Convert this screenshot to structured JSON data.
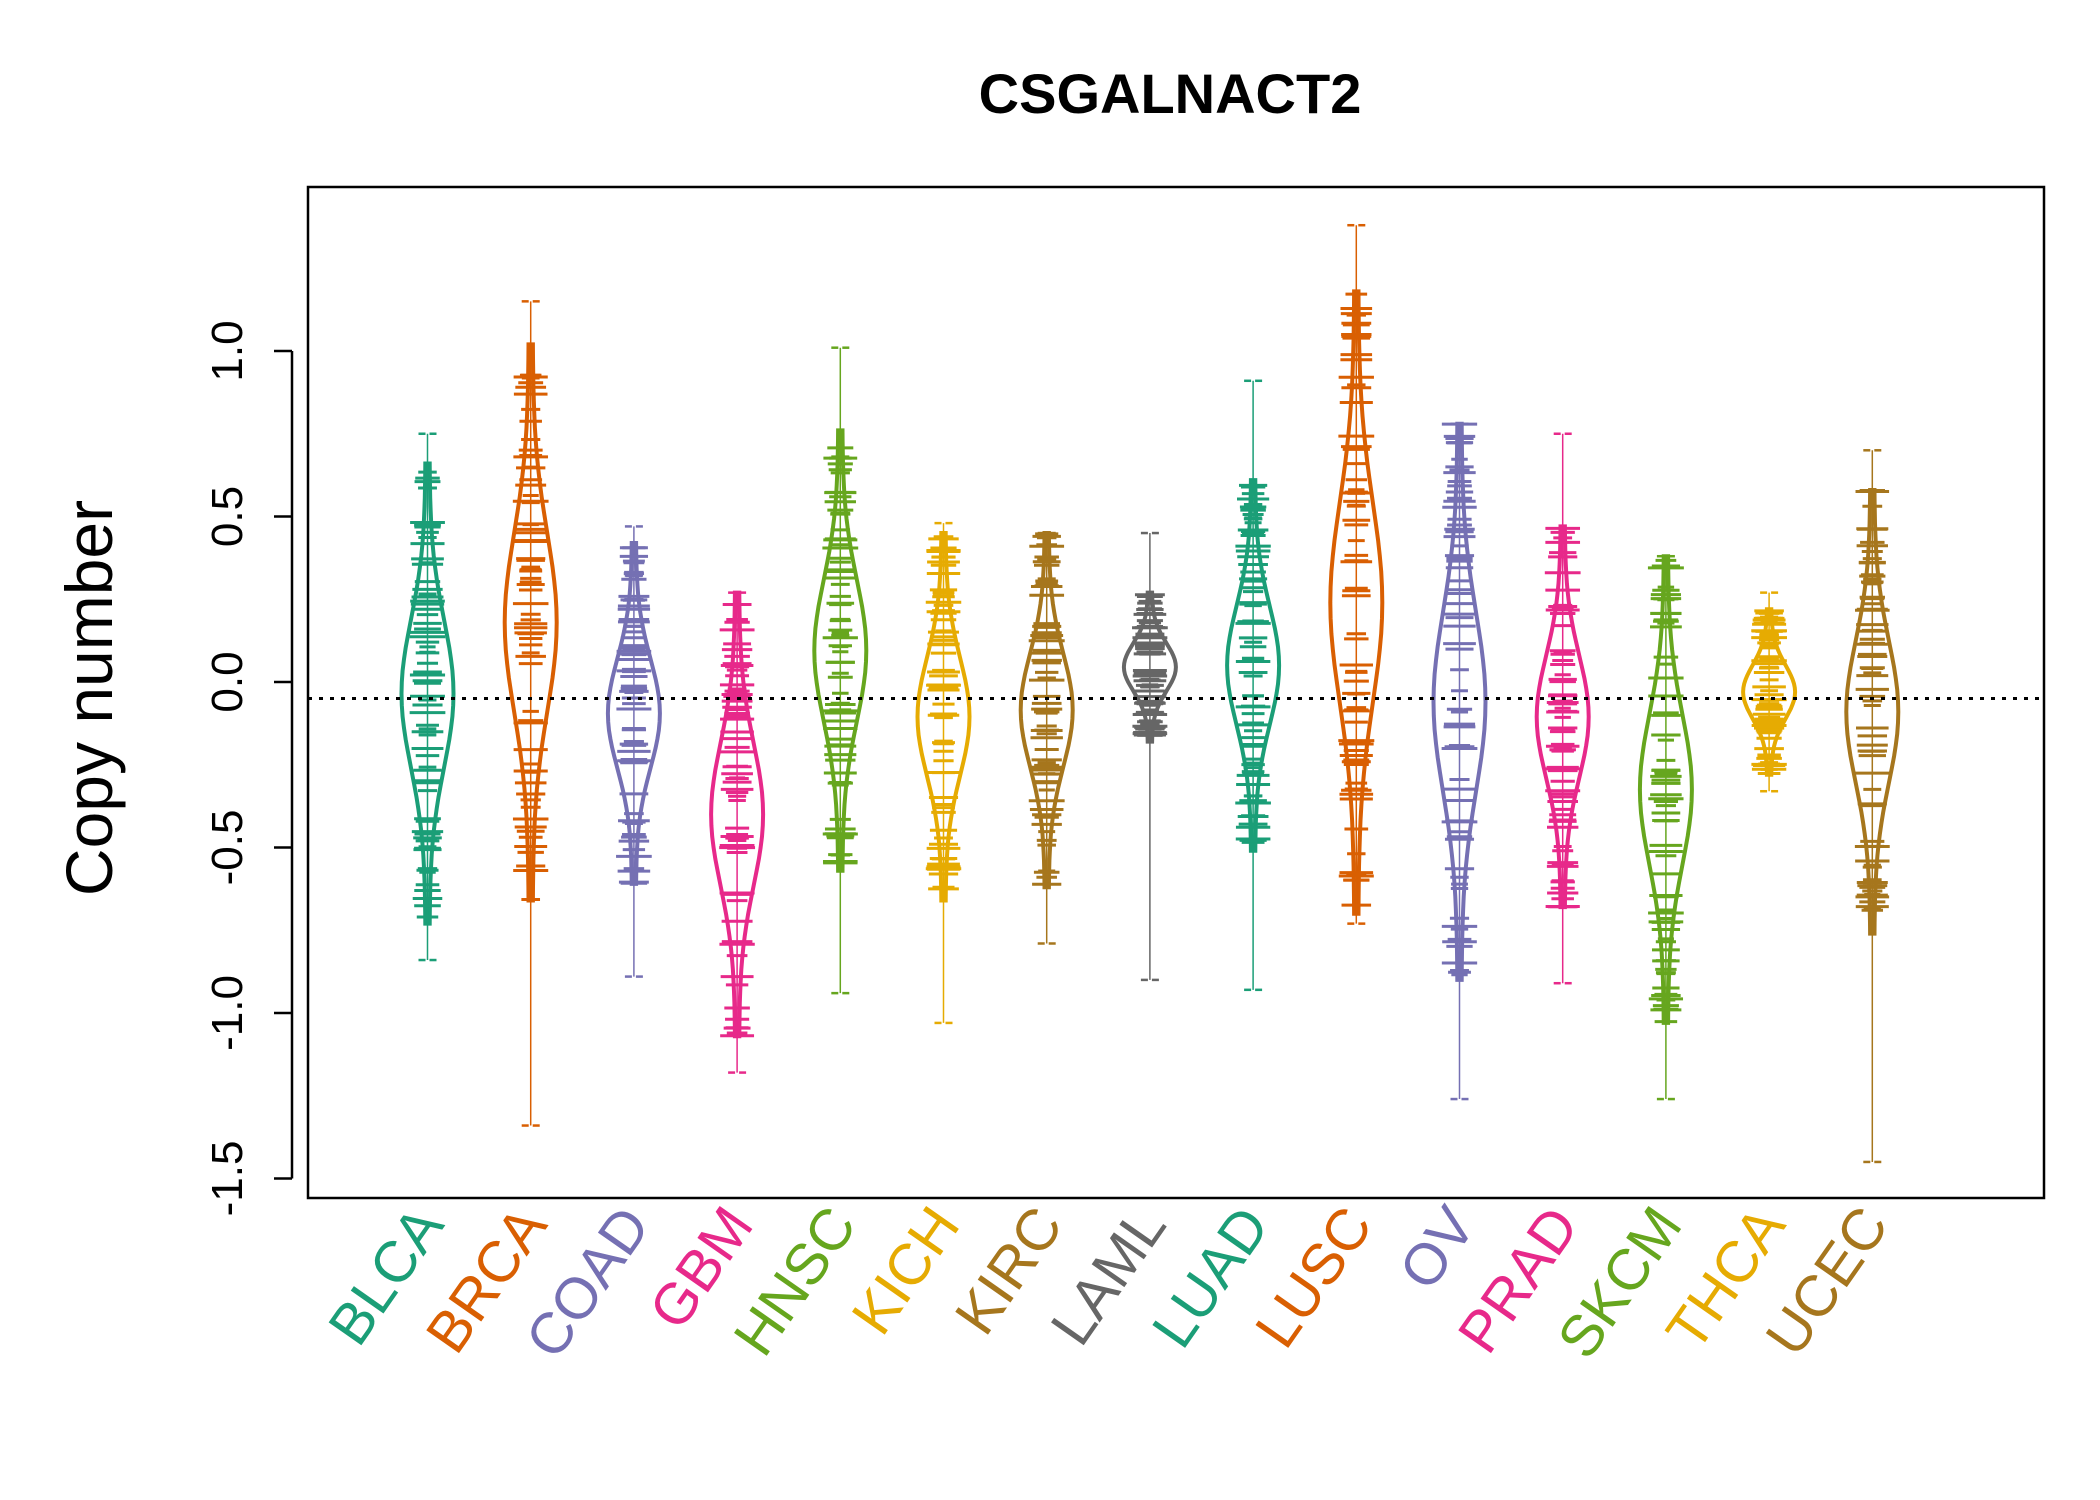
{
  "chart_data": {
    "type": "beanplot",
    "title": "CSGALNACT2",
    "xlabel": "",
    "ylabel": "Copy number",
    "ylim": [
      -1.55,
      1.5
    ],
    "yticks": [
      -1.5,
      -1.0,
      -0.5,
      0.0,
      0.5,
      1.0
    ],
    "ytick_labels": [
      "-1.5",
      "-1.0",
      "-0.5",
      "0.0",
      "0.5",
      "1.0"
    ],
    "reference_line": -0.05,
    "categories": [
      "BLCA",
      "BRCA",
      "COAD",
      "GBM",
      "HNSC",
      "KICH",
      "KIRC",
      "LAML",
      "LUAD",
      "LUSC",
      "OV",
      "PRAD",
      "SKCM",
      "THCA",
      "UCEC"
    ],
    "series": [
      {
        "name": "BLCA",
        "color": "#1B9E77",
        "min": -0.84,
        "max": 0.75,
        "lo": -0.73,
        "hi": 0.66
      },
      {
        "name": "BRCA",
        "color": "#D95F02",
        "min": -1.34,
        "max": 1.15,
        "lo": -0.66,
        "hi": 1.02
      },
      {
        "name": "COAD",
        "color": "#7570B3",
        "min": -0.89,
        "max": 0.47,
        "lo": -0.61,
        "hi": 0.42
      },
      {
        "name": "GBM",
        "color": "#E7298A",
        "min": -1.18,
        "max": 0.27,
        "lo": -1.07,
        "hi": 0.27
      },
      {
        "name": "HNSC",
        "color": "#66A61E",
        "min": -0.94,
        "max": 1.01,
        "lo": -0.57,
        "hi": 0.76
      },
      {
        "name": "KICH",
        "color": "#E6AB02",
        "min": -1.03,
        "max": 0.48,
        "lo": -0.66,
        "hi": 0.45
      },
      {
        "name": "KIRC",
        "color": "#A6761D",
        "min": -0.79,
        "max": 0.45,
        "lo": -0.62,
        "hi": 0.45
      },
      {
        "name": "LAML",
        "color": "#666666",
        "min": -0.9,
        "max": 0.45,
        "lo": -0.18,
        "hi": 0.27
      },
      {
        "name": "LUAD",
        "color": "#1B9E77",
        "min": -0.93,
        "max": 0.91,
        "lo": -0.51,
        "hi": 0.61
      },
      {
        "name": "LUSC",
        "color": "#D95F02",
        "min": -0.73,
        "max": 1.38,
        "lo": -0.7,
        "hi": 1.18
      },
      {
        "name": "OV",
        "color": "#7570B3",
        "min": -1.26,
        "max": 0.78,
        "lo": -0.9,
        "hi": 0.78
      },
      {
        "name": "PRAD",
        "color": "#E7298A",
        "min": -0.91,
        "max": 0.75,
        "lo": -0.68,
        "hi": 0.47
      },
      {
        "name": "SKCM",
        "color": "#66A61E",
        "min": -1.26,
        "max": 0.38,
        "lo": -1.03,
        "hi": 0.38
      },
      {
        "name": "THCA",
        "color": "#E6AB02",
        "min": -0.33,
        "max": 0.27,
        "lo": -0.28,
        "hi": 0.22
      },
      {
        "name": "UCEC",
        "color": "#A6761D",
        "min": -1.45,
        "max": 0.7,
        "lo": -0.76,
        "hi": 0.58
      }
    ],
    "grid": false,
    "legend": "none"
  }
}
